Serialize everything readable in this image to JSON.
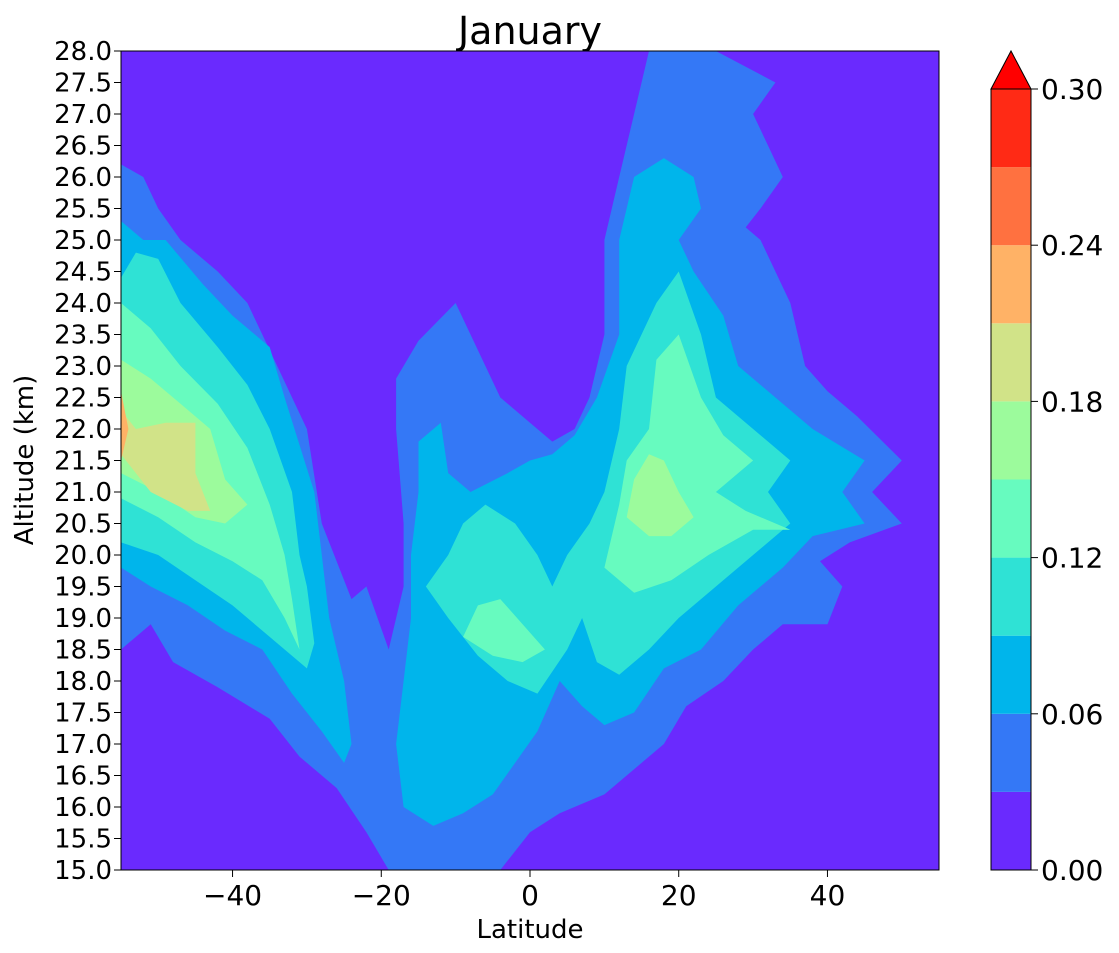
{
  "chart_data": {
    "type": "heatmap",
    "title": "January",
    "xlabel": "Latitude",
    "ylabel": "Altitude (km)",
    "xlim": [
      -55,
      55
    ],
    "ylim": [
      15.0,
      28.0
    ],
    "x_ticks": [
      -40,
      -20,
      0,
      20,
      40
    ],
    "x_tick_labels": [
      "−40",
      "−20",
      "0",
      "20",
      "40"
    ],
    "y_ticks": [
      15.0,
      15.5,
      16.0,
      16.5,
      17.0,
      17.5,
      18.0,
      18.5,
      19.0,
      19.5,
      20.0,
      20.5,
      21.0,
      21.5,
      22.0,
      22.5,
      23.0,
      23.5,
      24.0,
      24.5,
      25.0,
      25.5,
      26.0,
      26.5,
      27.0,
      27.5,
      28.0
    ],
    "y_tick_labels": [
      "15.0",
      "15.5",
      "16.0",
      "16.5",
      "17.0",
      "17.5",
      "18.0",
      "18.5",
      "19.0",
      "19.5",
      "20.0",
      "20.5",
      "21.0",
      "21.5",
      "22.0",
      "22.5",
      "23.0",
      "23.5",
      "24.0",
      "24.5",
      "25.0",
      "25.5",
      "26.0",
      "26.5",
      "27.0",
      "27.5",
      "28.0"
    ],
    "colorbar": {
      "levels": [
        0.0,
        0.03,
        0.06,
        0.09,
        0.12,
        0.15,
        0.18,
        0.21,
        0.24,
        0.27,
        0.3
      ],
      "colors": [
        "#6a2afe",
        "#3478f6",
        "#00b5eb",
        "#2fe2d5",
        "#67fbbf",
        "#9cfb9c",
        "#d1e388",
        "#ffb266",
        "#ff7140",
        "#ff2a15"
      ],
      "extend_color": "#ff0000",
      "extend": "max",
      "tick_values": [
        0.0,
        0.06,
        0.12,
        0.18,
        0.24,
        0.3
      ],
      "tick_labels": [
        "0.00",
        "0.06",
        "0.12",
        "0.18",
        "0.24",
        "0.30"
      ]
    },
    "background_color": "#6a2afe",
    "regions": [
      {
        "level": 1,
        "points": [
          [
            -55,
            18.5
          ],
          [
            -51,
            18.9
          ],
          [
            -48,
            18.3
          ],
          [
            -42,
            17.9
          ],
          [
            -35,
            17.4
          ],
          [
            -31,
            16.8
          ],
          [
            -26,
            16.3
          ],
          [
            -22,
            15.6
          ],
          [
            -19,
            15.0
          ],
          [
            -4,
            15.0
          ],
          [
            0,
            15.6
          ],
          [
            4,
            15.9
          ],
          [
            10,
            16.2
          ],
          [
            14,
            16.6
          ],
          [
            18,
            17.0
          ],
          [
            21,
            17.6
          ],
          [
            26,
            18.0
          ],
          [
            30,
            18.5
          ],
          [
            34,
            18.9
          ],
          [
            40,
            18.9
          ],
          [
            42,
            19.5
          ],
          [
            39,
            19.9
          ],
          [
            43,
            20.2
          ],
          [
            50,
            20.5
          ],
          [
            46,
            21.0
          ],
          [
            50,
            21.5
          ],
          [
            44,
            22.2
          ],
          [
            40,
            22.6
          ],
          [
            37,
            23.0
          ],
          [
            35,
            24.0
          ],
          [
            33,
            24.5
          ],
          [
            31,
            25.0
          ],
          [
            29,
            25.2
          ],
          [
            31,
            25.5
          ],
          [
            34,
            26.0
          ],
          [
            32,
            26.5
          ],
          [
            30,
            27.0
          ],
          [
            33,
            27.5
          ],
          [
            25,
            28.0
          ],
          [
            16,
            28.0
          ],
          [
            14,
            27.0
          ],
          [
            12,
            26.0
          ],
          [
            10,
            25.0
          ],
          [
            10,
            23.5
          ],
          [
            8,
            22.5
          ],
          [
            6,
            22.0
          ],
          [
            3,
            21.8
          ],
          [
            0,
            22.1
          ],
          [
            -4,
            22.5
          ],
          [
            -8,
            23.5
          ],
          [
            -10,
            24.0
          ],
          [
            -15,
            23.4
          ],
          [
            -18,
            22.8
          ],
          [
            -18,
            22.0
          ],
          [
            -17,
            20.5
          ],
          [
            -17,
            19.5
          ],
          [
            -19,
            18.5
          ],
          [
            -22,
            19.5
          ],
          [
            -24,
            19.3
          ],
          [
            -28,
            20.5
          ],
          [
            -30,
            22.0
          ],
          [
            -34,
            23.0
          ],
          [
            -38,
            24.0
          ],
          [
            -42,
            24.5
          ],
          [
            -47,
            25.0
          ],
          [
            -50,
            25.5
          ],
          [
            -52,
            26.0
          ],
          [
            -55,
            26.2
          ]
        ]
      },
      {
        "level": 2,
        "points": [
          [
            -55,
            19.8
          ],
          [
            -51,
            19.5
          ],
          [
            -46,
            19.2
          ],
          [
            -41,
            18.8
          ],
          [
            -36,
            18.5
          ],
          [
            -32,
            17.8
          ],
          [
            -28,
            17.2
          ],
          [
            -25,
            16.7
          ],
          [
            -24,
            17.0
          ],
          [
            -25,
            18.0
          ],
          [
            -27,
            19.0
          ],
          [
            -28,
            20.0
          ],
          [
            -29,
            21.0
          ],
          [
            -33,
            22.5
          ],
          [
            -35,
            23.3
          ],
          [
            -40,
            23.8
          ],
          [
            -44,
            24.3
          ],
          [
            -49,
            25.0
          ],
          [
            -52,
            25.0
          ],
          [
            -55,
            25.3
          ]
        ]
      },
      {
        "level": 2,
        "points": [
          [
            -17,
            16.0
          ],
          [
            -13,
            15.7
          ],
          [
            -9,
            15.9
          ],
          [
            -5,
            16.2
          ],
          [
            -2,
            16.7
          ],
          [
            1,
            17.2
          ],
          [
            4,
            18.0
          ],
          [
            7,
            17.6
          ],
          [
            10,
            17.3
          ],
          [
            14,
            17.5
          ],
          [
            18,
            18.2
          ],
          [
            23,
            18.5
          ],
          [
            28,
            19.2
          ],
          [
            34,
            19.8
          ],
          [
            38,
            20.3
          ],
          [
            45,
            20.5
          ],
          [
            42,
            21.0
          ],
          [
            45,
            21.5
          ],
          [
            38,
            22.0
          ],
          [
            33,
            22.5
          ],
          [
            28,
            23.0
          ],
          [
            26,
            23.8
          ],
          [
            22,
            24.5
          ],
          [
            20,
            25.0
          ],
          [
            23,
            25.5
          ],
          [
            22,
            26.0
          ],
          [
            18,
            26.3
          ],
          [
            14,
            26.0
          ],
          [
            12,
            25.0
          ],
          [
            12,
            23.5
          ],
          [
            9,
            22.5
          ],
          [
            6,
            21.9
          ],
          [
            3,
            21.6
          ],
          [
            0,
            21.5
          ],
          [
            -3,
            21.3
          ],
          [
            -8,
            21.0
          ],
          [
            -11,
            21.3
          ],
          [
            -12,
            22.1
          ],
          [
            -15,
            21.8
          ],
          [
            -15,
            21.0
          ],
          [
            -16,
            20.0
          ],
          [
            -16,
            19.0
          ],
          [
            -17,
            18.0
          ],
          [
            -18,
            17.0
          ]
        ]
      },
      {
        "level": 3,
        "points": [
          [
            -55,
            20.2
          ],
          [
            -50,
            20.0
          ],
          [
            -45,
            19.6
          ],
          [
            -40,
            19.2
          ],
          [
            -36,
            18.8
          ],
          [
            -33,
            18.5
          ],
          [
            -30,
            18.2
          ],
          [
            -29,
            18.6
          ],
          [
            -30,
            19.5
          ],
          [
            -31,
            20.0
          ],
          [
            -32,
            21.0
          ],
          [
            -35,
            22.0
          ],
          [
            -38,
            22.7
          ],
          [
            -42,
            23.3
          ],
          [
            -47,
            24.0
          ],
          [
            -50,
            24.7
          ],
          [
            -53,
            24.8
          ],
          [
            -55,
            24.4
          ]
        ]
      },
      {
        "level": 3,
        "points": [
          [
            -14,
            19.5
          ],
          [
            -11,
            19.0
          ],
          [
            -7,
            18.4
          ],
          [
            -3,
            18.0
          ],
          [
            1,
            17.8
          ],
          [
            5,
            18.5
          ],
          [
            7,
            19.0
          ],
          [
            9,
            18.3
          ],
          [
            12,
            18.1
          ],
          [
            16,
            18.5
          ],
          [
            20,
            19.0
          ],
          [
            25,
            19.5
          ],
          [
            30,
            20.0
          ],
          [
            35,
            20.5
          ],
          [
            32,
            21.0
          ],
          [
            35,
            21.5
          ],
          [
            30,
            22.0
          ],
          [
            25,
            22.5
          ],
          [
            23,
            23.5
          ],
          [
            20,
            24.5
          ],
          [
            17,
            24.0
          ],
          [
            13,
            23.0
          ],
          [
            12,
            22.0
          ],
          [
            10,
            21.0
          ],
          [
            8,
            20.5
          ],
          [
            5,
            20.0
          ],
          [
            3,
            19.5
          ],
          [
            1,
            20.0
          ],
          [
            -2,
            20.5
          ],
          [
            -6,
            20.8
          ],
          [
            -9,
            20.5
          ],
          [
            -11,
            20.0
          ]
        ]
      },
      {
        "level": 4,
        "points": [
          [
            -55,
            20.9
          ],
          [
            -50,
            20.6
          ],
          [
            -45,
            20.2
          ],
          [
            -40,
            19.9
          ],
          [
            -36,
            19.6
          ],
          [
            -33,
            19.0
          ],
          [
            -31,
            18.5
          ],
          [
            -32,
            19.3
          ],
          [
            -33,
            20.0
          ],
          [
            -35,
            20.8
          ],
          [
            -38,
            21.7
          ],
          [
            -42,
            22.4
          ],
          [
            -47,
            23.0
          ],
          [
            -51,
            23.6
          ],
          [
            -55,
            24.0
          ]
        ]
      },
      {
        "level": 4,
        "points": [
          [
            -9,
            18.7
          ],
          [
            -5,
            18.4
          ],
          [
            -1,
            18.3
          ],
          [
            2,
            18.5
          ],
          [
            -1,
            18.9
          ],
          [
            -4,
            19.3
          ],
          [
            -7,
            19.2
          ]
        ]
      },
      {
        "level": 4,
        "points": [
          [
            10,
            19.8
          ],
          [
            14,
            19.4
          ],
          [
            19,
            19.6
          ],
          [
            24,
            20.0
          ],
          [
            30,
            20.4
          ],
          [
            35,
            20.4
          ],
          [
            29,
            20.7
          ],
          [
            25,
            21.0
          ],
          [
            30,
            21.5
          ],
          [
            26,
            21.9
          ],
          [
            23,
            22.5
          ],
          [
            20,
            23.5
          ],
          [
            17,
            23.1
          ],
          [
            16,
            22.0
          ],
          [
            13,
            21.5
          ],
          [
            12,
            20.8
          ]
        ]
      },
      {
        "level": 5,
        "points": [
          [
            -55,
            21.3
          ],
          [
            -50,
            21.0
          ],
          [
            -45,
            20.6
          ],
          [
            -41,
            20.5
          ],
          [
            -38,
            20.8
          ],
          [
            -41,
            21.2
          ],
          [
            -43,
            22.0
          ],
          [
            -47,
            22.4
          ],
          [
            -51,
            22.8
          ],
          [
            -55,
            23.1
          ]
        ]
      },
      {
        "level": 5,
        "points": [
          [
            13,
            20.6
          ],
          [
            16,
            20.3
          ],
          [
            19,
            20.3
          ],
          [
            22,
            20.6
          ],
          [
            20,
            21.0
          ],
          [
            18,
            21.5
          ],
          [
            16,
            21.6
          ],
          [
            14,
            21.2
          ]
        ]
      },
      {
        "level": 6,
        "points": [
          [
            -55,
            21.6
          ],
          [
            -51,
            21.0
          ],
          [
            -46,
            20.7
          ],
          [
            -43,
            20.7
          ],
          [
            -45,
            21.3
          ],
          [
            -45,
            22.1
          ],
          [
            -49,
            22.1
          ],
          [
            -53,
            22.0
          ],
          [
            -55,
            22.3
          ]
        ]
      },
      {
        "level": 7,
        "points": [
          [
            -55,
            21.5
          ],
          [
            -54,
            22.0
          ],
          [
            -55,
            22.6
          ]
        ]
      }
    ]
  }
}
